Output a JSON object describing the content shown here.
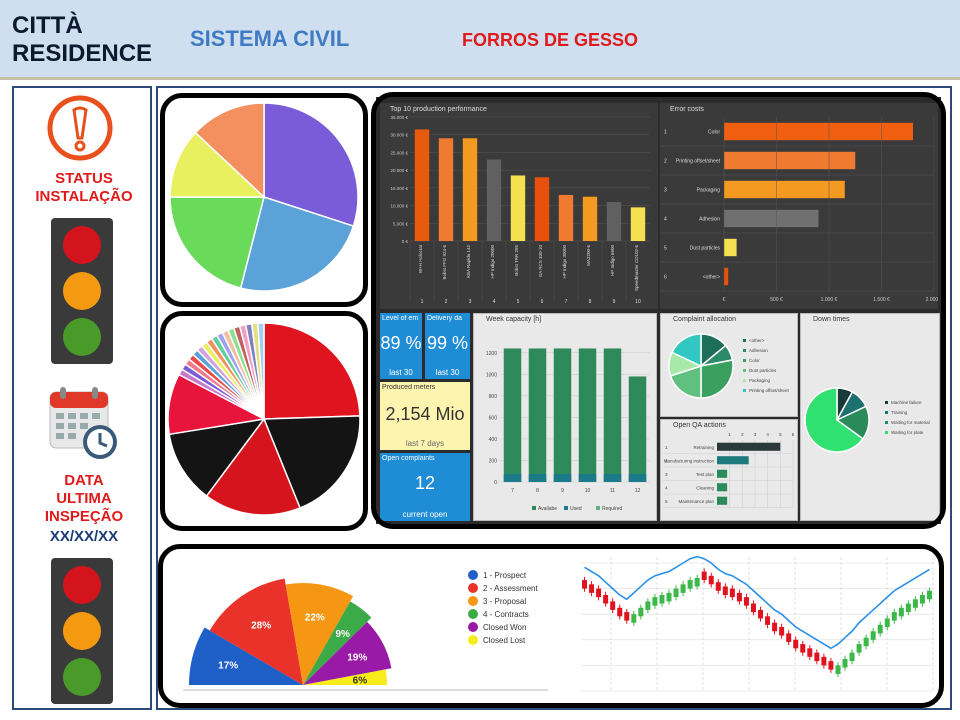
{
  "header": {
    "title_line1": "CITTÀ",
    "title_line2": "RESIDENCE",
    "system": "SISTEMA CIVIL",
    "subject": "FORROS DE GESSO"
  },
  "status": {
    "label_line1": "STATUS",
    "label_line2": "INSTALAÇÃO",
    "icon": "exclamation-circle-icon"
  },
  "inspection": {
    "label_line1": "DATA",
    "label_line2": "ULTIMA",
    "label_line3": "INSPEÇÃO",
    "date": "XX/XX/XX",
    "icon": "calendar-clock-icon"
  },
  "colors": {
    "header_bg": "#cfdff0",
    "red_text": "#e01a1a",
    "blue_text": "#3f7bc2",
    "navy": "#1a3a7a"
  },
  "dashboard": {
    "top10": {
      "title": "Top 10 production performance",
      "yticks": [
        "35.000 €",
        "30.000 €",
        "25.000 €",
        "20.000 €",
        "15.000 €",
        "10.000 €",
        "5.000 €",
        "0 €"
      ],
      "names": [
        "W+H Holocrat",
        "Bobst FFG 924-6",
        "KBA Rapida 142",
        "HP Indigo 20000",
        "Bobst TRR 295",
        "GA RCS 330-10",
        "HP Indigo 30000",
        "MA2200-6",
        "HP Indigo 6600",
        "Speedmaster CD102-6"
      ],
      "ranks": [
        "1",
        "2",
        "3",
        "4",
        "5",
        "6",
        "7",
        "8",
        "9",
        "10"
      ],
      "values": [
        31500,
        29000,
        29000,
        23000,
        18500,
        18000,
        13000,
        12500,
        11000,
        9500
      ],
      "colors": [
        "#e85a0c",
        "#f07a30",
        "#f49a20",
        "#606060",
        "#f5e050",
        "#e8500c",
        "#f07a30",
        "#f49a20",
        "#606060",
        "#f5e050"
      ]
    },
    "error_costs": {
      "title": "Error costs",
      "ranks": [
        "1",
        "2",
        "3",
        "4",
        "5",
        "6"
      ],
      "categories": [
        "Color",
        "Printing offset/sheet",
        "Packaging",
        "Adhesion",
        "Dust particles",
        "<other>"
      ],
      "values": [
        1800,
        1250,
        1150,
        900,
        120,
        40
      ],
      "colors": [
        "#f06010",
        "#f07a30",
        "#f49a20",
        "#707070",
        "#f5e050",
        "#e8500c"
      ],
      "xticks": [
        "€",
        "500 €",
        "1.000 €",
        "1.500 €",
        "2.000 €"
      ]
    },
    "kpis": {
      "level": {
        "title": "Level of em",
        "value": "89 %",
        "sub": "last 30"
      },
      "delivery": {
        "title": "Delivery da",
        "value": "99 %",
        "sub": "last 30"
      },
      "meters": {
        "title": "Produced meters",
        "value": "2,154 Mio",
        "sub": "last 7 days"
      },
      "complaints": {
        "title": "Open complaints",
        "value": "12",
        "sub": "current open"
      }
    },
    "week_capacity": {
      "title": "Week capacity [h]",
      "yticks": [
        "1200",
        "1000",
        "800",
        "600",
        "400",
        "200",
        "0"
      ],
      "categories": [
        "7",
        "8",
        "9",
        "10",
        "11",
        "12"
      ],
      "values": [
        1240,
        1240,
        1240,
        1240,
        1240,
        980
      ],
      "legend": [
        "Availabe",
        "Used",
        "Required"
      ]
    },
    "complaint_allocation": {
      "title": "Complaint allocation",
      "legend": [
        "<other>",
        "Adhesion",
        "Color",
        "Dust particles",
        "Packaging",
        "Printing offset/sheet"
      ],
      "values": [
        14,
        8,
        28,
        20,
        12,
        18
      ],
      "colors": [
        "#1d6e5a",
        "#2a8a6a",
        "#3aa060",
        "#60c080",
        "#a8e8a8",
        "#30c8c0"
      ]
    },
    "open_qa": {
      "title": "Open QA actions",
      "ticks": [
        "1",
        "2",
        "3",
        "4",
        "5",
        "6"
      ],
      "ranks": [
        "1",
        "2",
        "3",
        "4",
        "5"
      ],
      "categories": [
        "Retraining",
        "Manufacturing instruction",
        "Test plan",
        "Cleaning",
        "Maintenance plan"
      ],
      "values": [
        5,
        2.5,
        0.8,
        0.8,
        0.8
      ]
    },
    "down_times": {
      "title": "Down times",
      "legend": [
        "Machine failure",
        "Training",
        "Waiting for material",
        "Waiting for plate"
      ],
      "values": [
        8,
        10,
        17,
        65
      ],
      "colors": [
        "#1a3a3a",
        "#1d7070",
        "#2a8a5a",
        "#30e070"
      ]
    }
  },
  "chart_data": [
    {
      "type": "pie",
      "values": [
        30,
        24,
        21,
        12,
        13
      ],
      "colors": [
        "#7a5cd8",
        "#5aa2d8",
        "#6ada5a",
        "#e8f060",
        "#f49060"
      ]
    },
    {
      "type": "pie",
      "values": [
        24,
        19,
        16,
        12,
        10,
        1,
        1,
        1,
        1,
        1,
        1,
        1,
        1,
        1,
        1,
        1,
        1,
        1,
        1,
        1,
        1,
        1
      ],
      "colors": [
        "#e0141e",
        "#141414",
        "#d6141e",
        "#141414",
        "#e8143c",
        "#c878c8",
        "#7a5cd8",
        "#f07a8a",
        "#e84a4a",
        "#5aa2d8",
        "#d6a0e0",
        "#e8f060",
        "#f49060",
        "#60d0a0",
        "#a0a0f0",
        "#f0c0a0",
        "#90e090",
        "#c06060",
        "#f0a0c0",
        "#8080c0",
        "#e0e080",
        "#a0d0f0"
      ]
    },
    {
      "type": "pie",
      "title": "",
      "categories": [
        "1 - Prospect",
        "2 - Assessment",
        "3 - Proposal",
        "4 - Contracts",
        "Closed Won",
        "Closed Lost"
      ],
      "values": [
        17,
        28,
        22,
        9,
        19,
        6
      ],
      "labels": [
        "17%",
        "28%",
        "22%",
        "9%",
        "19%",
        "6%"
      ],
      "colors": [
        "#1f5fc8",
        "#e8322a",
        "#f59712",
        "#3daa48",
        "#9a1aa8",
        "#f8ec1a"
      ]
    },
    {
      "type": "line",
      "x": [
        1,
        2,
        3,
        4,
        5,
        6,
        7,
        8,
        9,
        10,
        11,
        12,
        13,
        14,
        15,
        16,
        17,
        18,
        19,
        20,
        21,
        22,
        23,
        24,
        25,
        26,
        27,
        28,
        29,
        30,
        31,
        32,
        33,
        34,
        35,
        36,
        37,
        38,
        39,
        40,
        41,
        42,
        43,
        44,
        45,
        46,
        47,
        48,
        49,
        50
      ],
      "values": [
        48,
        46,
        44,
        41,
        38,
        35,
        33,
        36,
        39,
        42,
        44,
        45,
        46,
        48,
        50,
        52,
        53,
        52,
        50,
        47,
        45,
        44,
        42,
        40,
        37,
        34,
        31,
        28,
        26,
        23,
        20,
        18,
        16,
        14,
        12,
        10,
        12,
        15,
        18,
        22,
        25,
        28,
        31,
        34,
        37,
        39,
        41,
        43,
        45,
        47
      ],
      "up_color": "#3cb84a",
      "down_color": "#e0141e",
      "line_color": "#2a90e8"
    }
  ]
}
